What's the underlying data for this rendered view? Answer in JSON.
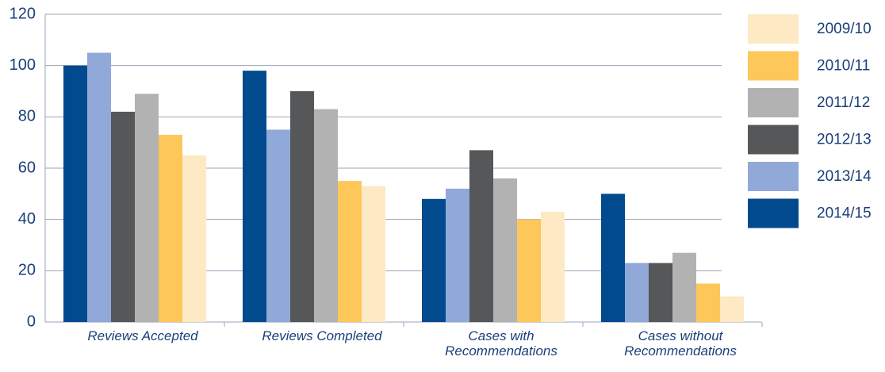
{
  "chart_data": {
    "type": "bar",
    "categories": [
      "Reviews Accepted",
      "Reviews Completed",
      "Cases with Recommendations",
      "Cases without Recommendations"
    ],
    "series": [
      {
        "name": "2009/10",
        "color": "#fde9c4",
        "values": [
          65,
          53,
          43,
          10
        ]
      },
      {
        "name": "2010/11",
        "color": "#fdc75a",
        "values": [
          73,
          55,
          40,
          15
        ]
      },
      {
        "name": "2011/12",
        "color": "#b2b2b2",
        "values": [
          89,
          83,
          56,
          27
        ]
      },
      {
        "name": "2012/13",
        "color": "#555759",
        "values": [
          82,
          90,
          67,
          23
        ]
      },
      {
        "name": "2013/14",
        "color": "#90a9d8",
        "values": [
          105,
          75,
          52,
          23
        ]
      },
      {
        "name": "2014/15",
        "color": "#004a8d",
        "values": [
          100,
          98,
          48,
          50
        ]
      }
    ],
    "ylim": [
      0,
      120
    ],
    "yticks": [
      0,
      20,
      40,
      60,
      80,
      100,
      120
    ],
    "grid": true,
    "legend": "right"
  }
}
